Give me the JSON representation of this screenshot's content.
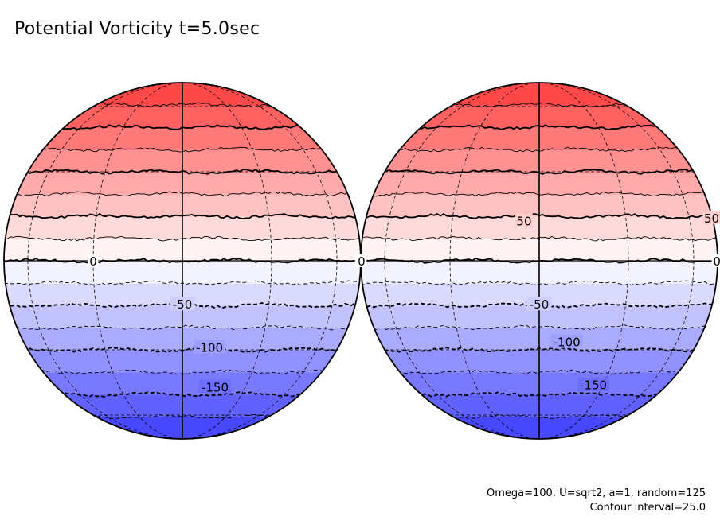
{
  "title": "Potential Vorticity t=5.0sec",
  "footer": {
    "params": "Omega=100, U=sqrt2, a=1, random=125",
    "interval": "Contour interval=25.0"
  },
  "colors": {
    "positive": "#ff3c3c",
    "negative": "#3c3cff",
    "zero": "#ffffff",
    "line": "#000000"
  },
  "chart_data": {
    "type": "contour",
    "title": "Potential Vorticity t=5.0sec",
    "field": "Potential Vorticity",
    "time": "t=5.0sec",
    "contour_interval": 25.0,
    "value_range": [
      -200,
      200
    ],
    "levels": [
      -175,
      -150,
      -125,
      -100,
      -75,
      -50,
      -25,
      0,
      25,
      50,
      75,
      100,
      125,
      150,
      175
    ],
    "projection": "orthographic, two hemispheres",
    "latitude_gridlines_deg": [
      -60,
      -30,
      30,
      60
    ],
    "longitude_gridlines_deg": [
      -60,
      -30,
      30,
      60
    ],
    "panels": [
      {
        "name": "left-hemisphere",
        "labels": [
          {
            "text": "0",
            "level": 0,
            "lon": -30,
            "lat": 0
          },
          {
            "text": "0",
            "level": 0,
            "lon": 85,
            "lat": 0
          },
          {
            "text": "-50",
            "level": -50,
            "lon": 0,
            "lat": -14
          },
          {
            "text": "-100",
            "level": -100,
            "lon": 10,
            "lat": -29
          },
          {
            "text": "-150",
            "level": -150,
            "lon": 15,
            "lat": -45
          }
        ]
      },
      {
        "name": "right-hemisphere",
        "labels": [
          {
            "text": "50",
            "level": 50,
            "lon": -5,
            "lat": 13
          },
          {
            "text": "50",
            "level": 50,
            "lon": 85,
            "lat": 14
          },
          {
            "text": "0",
            "level": 0,
            "lon": -85,
            "lat": 0
          },
          {
            "text": "0",
            "level": 0,
            "lon": 85,
            "lat": 0
          },
          {
            "text": "-50",
            "level": -50,
            "lon": 0,
            "lat": -14
          },
          {
            "text": "-100",
            "level": -100,
            "lon": 10,
            "lat": -27
          },
          {
            "text": "-150",
            "level": -150,
            "lon": 25,
            "lat": -44
          }
        ]
      }
    ]
  }
}
